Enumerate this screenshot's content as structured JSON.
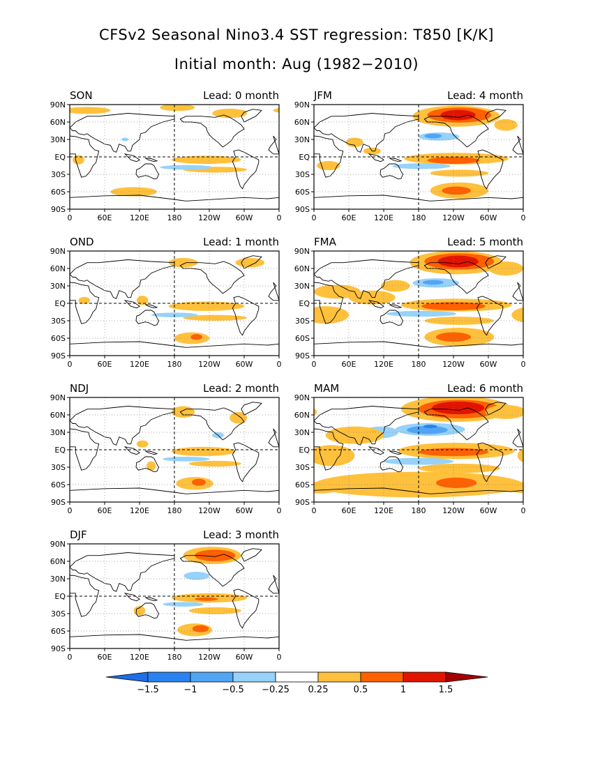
{
  "title": "CFSv2 Seasonal Nino3.4 SST regression: T850 [K/K]",
  "subtitle": "Initial month: Aug (1982−2010)",
  "lead_prefix": "Lead:",
  "lead_unit": "month",
  "panels": [
    {
      "season": "SON",
      "lead": 0
    },
    {
      "season": "OND",
      "lead": 1
    },
    {
      "season": "NDJ",
      "lead": 2
    },
    {
      "season": "DJF",
      "lead": 3
    },
    {
      "season": "JFM",
      "lead": 4
    },
    {
      "season": "FMA",
      "lead": 5
    },
    {
      "season": "MAM",
      "lead": 6
    }
  ],
  "axes": {
    "lat_labels": [
      "90N",
      "60N",
      "30N",
      "EQ",
      "30S",
      "60S",
      "90S"
    ],
    "lon_labels": [
      "0",
      "60E",
      "120E",
      "180",
      "120W",
      "60W",
      "0"
    ]
  },
  "colorbar": {
    "levels": [
      "−1.5",
      "−1",
      "−0.5",
      "−0.25",
      "0.25",
      "0.5",
      "1",
      "1.5"
    ],
    "colors": [
      "#1e6ee6",
      "#2a82f0",
      "#50a5f5",
      "#96d2fa",
      "#ffffff",
      "#ffc03c",
      "#ff6000",
      "#e11400",
      "#a50000"
    ]
  }
}
